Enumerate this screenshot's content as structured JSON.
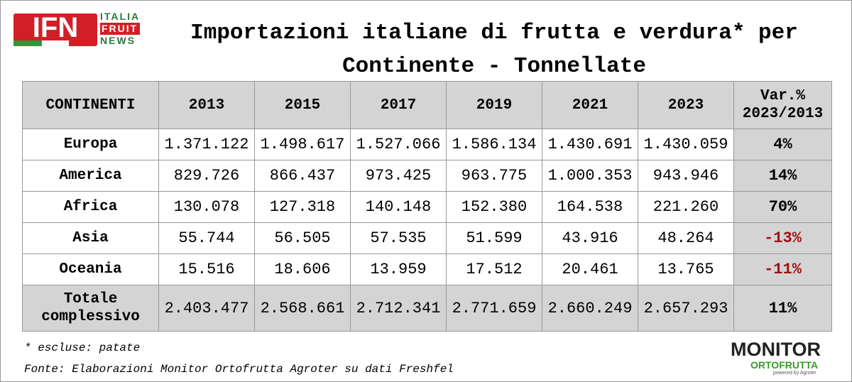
{
  "logo": {
    "name": "IFN",
    "line1": "ITALIA",
    "line2": "FRUIT",
    "line3": "NEWS"
  },
  "title": {
    "line1": "Importazioni italiane di frutta e verdura* per",
    "line2": "Continente - Tonnellate"
  },
  "table": {
    "header": [
      "CONTINENTI",
      "2013",
      "2015",
      "2017",
      "2019",
      "2021",
      "2023",
      "Var.% 2023/2013"
    ],
    "rows": [
      [
        "Europa",
        "1.371.122",
        "1.498.617",
        "1.527.066",
        "1.586.134",
        "1.430.691",
        "1.430.059",
        "4%"
      ],
      [
        "America",
        "829.726",
        "866.437",
        "973.425",
        "963.775",
        "1.000.353",
        "943.946",
        "14%"
      ],
      [
        "Africa",
        "130.078",
        "127.318",
        "140.148",
        "152.380",
        "164.538",
        "221.260",
        "70%"
      ],
      [
        "Asia",
        "55.744",
        "56.505",
        "57.535",
        "51.599",
        "43.916",
        "48.264",
        "-13%"
      ],
      [
        "Oceania",
        "15.516",
        "18.606",
        "13.959",
        "17.512",
        "20.461",
        "13.765",
        "-11%"
      ]
    ],
    "total": [
      "Totale complessivo",
      "2.403.477",
      "2.568.661",
      "2.712.341",
      "2.771.659",
      "2.660.249",
      "2.657.293",
      "11%"
    ]
  },
  "footnotes": {
    "note": "* escluse: patate",
    "source": "Fonte: Elaborazioni Monitor Ortofrutta Agroter su dati Freshfel"
  },
  "monitor_logo": {
    "line1": "MONITOR",
    "line2": "ORTOFRUTTA",
    "line3": "powered by Agroter"
  }
}
